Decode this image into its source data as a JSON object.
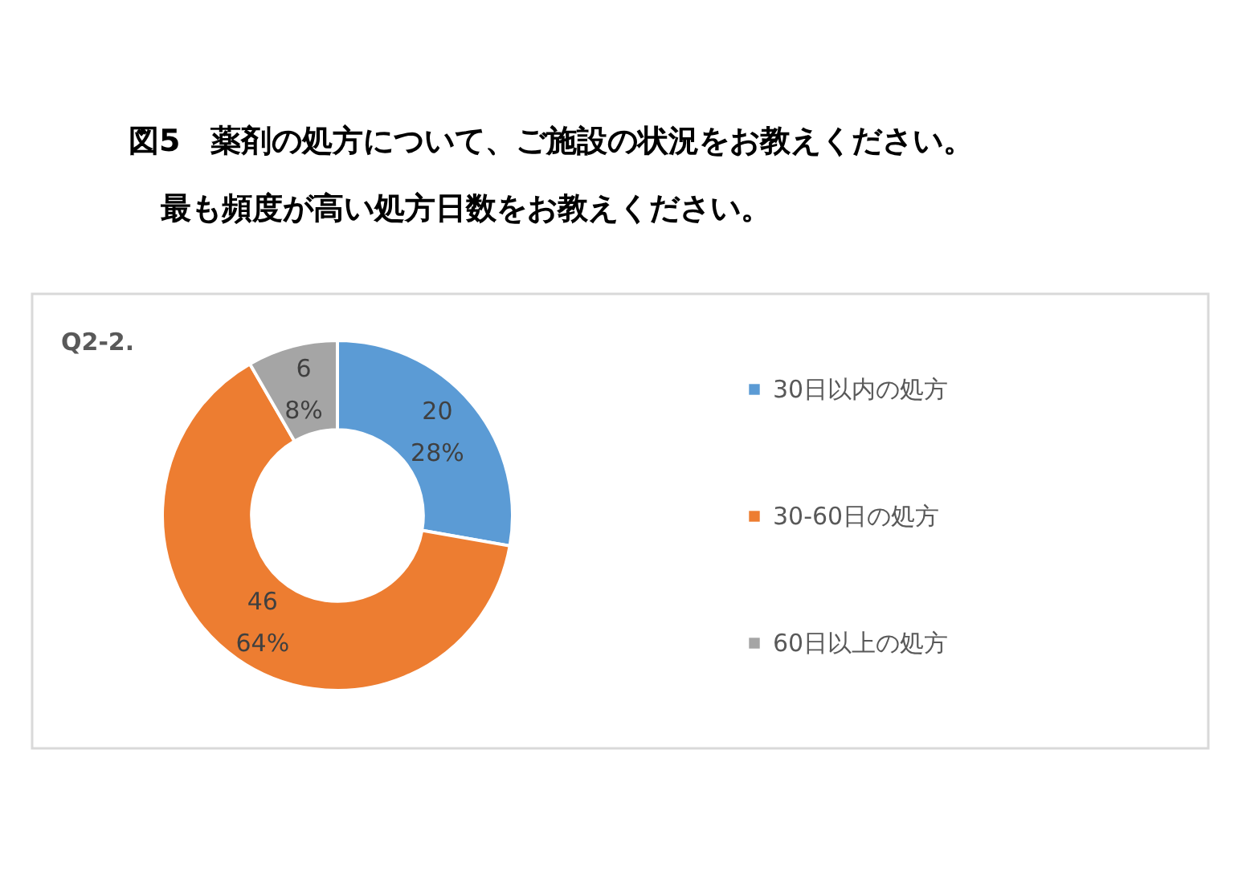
{
  "chart_data": {
    "type": "donut",
    "title": "図5　薬剤の処方について、ご施設の状況をお教えください。",
    "subtitle": "最も頻度が高い処方日数をお教えください。",
    "annotations": [
      "Q2-2."
    ],
    "categories": [
      "30日以内の処方",
      "30-60日の処方",
      "60日以上の処方"
    ],
    "values": [
      20,
      46,
      6
    ],
    "colors": [
      "#5b9bd5",
      "#ed7d31",
      "#a5a5a5"
    ],
    "value_labels": [
      "20\n28%",
      "46\n64%",
      "6\n8%"
    ],
    "legend": "right"
  }
}
